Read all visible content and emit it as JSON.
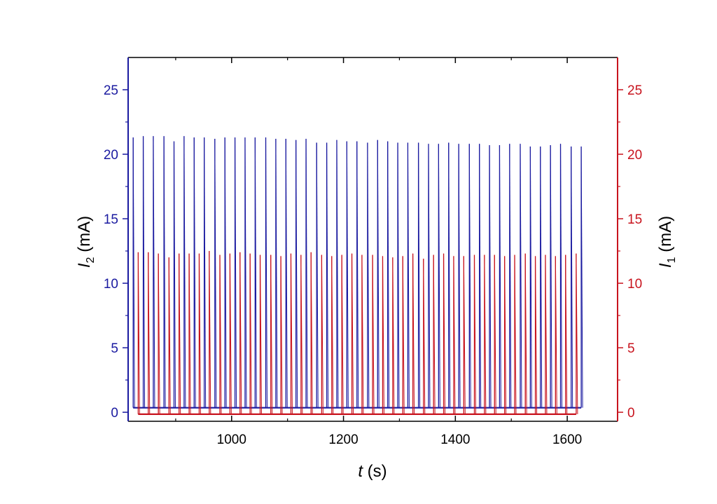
{
  "chart_data": {
    "type": "line",
    "x": {
      "label_var": "t",
      "label_unit": " (s)",
      "range": [
        815,
        1690
      ],
      "ticks": [
        1000,
        1200,
        1400,
        1600
      ],
      "tick_labels": [
        "1000",
        "1200",
        "1400",
        "1600"
      ]
    },
    "y_left": {
      "label_var": "I",
      "label_sub": "2",
      "label_unit": " (mA)",
      "range": [
        -0.7,
        27.5
      ],
      "ticks": [
        0,
        5,
        10,
        15,
        20,
        25
      ],
      "tick_labels": [
        "0",
        "5",
        "10",
        "15",
        "20",
        "25"
      ],
      "color": "#1a1aa0"
    },
    "y_right": {
      "label_var": "I",
      "label_sub": "1",
      "label_unit": " (mA)",
      "range": [
        -0.7,
        27.5
      ],
      "ticks": [
        0,
        5,
        10,
        15,
        20,
        25
      ],
      "tick_labels": [
        "0",
        "5",
        "10",
        "15",
        "20",
        "25"
      ],
      "color": "#c8141e"
    },
    "series": [
      {
        "axis": "left",
        "color": "#1a1aa0",
        "baseline": 0.35,
        "spike_times": [
          824,
          842,
          860,
          879,
          897,
          915,
          933,
          951,
          970,
          988,
          1006,
          1024,
          1042,
          1061,
          1079,
          1097,
          1115,
          1133,
          1152,
          1170,
          1188,
          1206,
          1224,
          1243,
          1261,
          1279,
          1297,
          1315,
          1334,
          1352,
          1370,
          1388,
          1406,
          1425,
          1443,
          1461,
          1479,
          1497,
          1516,
          1534,
          1552,
          1570,
          1588,
          1607,
          1625
        ],
        "spike_peaks": [
          21.3,
          21.4,
          21.4,
          21.4,
          21.0,
          21.4,
          21.3,
          21.3,
          21.2,
          21.3,
          21.3,
          21.3,
          21.3,
          21.3,
          21.2,
          21.2,
          21.1,
          21.2,
          20.9,
          20.9,
          21.1,
          21.0,
          21.0,
          20.9,
          21.1,
          21.0,
          20.9,
          20.9,
          20.9,
          20.8,
          20.8,
          20.9,
          20.8,
          20.8,
          20.8,
          20.7,
          20.7,
          20.8,
          20.8,
          20.6,
          20.6,
          20.7,
          20.8,
          20.6,
          20.6
        ]
      },
      {
        "axis": "right",
        "color": "#c8141e",
        "baseline": -0.15,
        "spike_times": [
          833,
          851,
          869,
          888,
          906,
          924,
          942,
          960,
          979,
          997,
          1015,
          1033,
          1051,
          1070,
          1088,
          1106,
          1124,
          1142,
          1161,
          1179,
          1197,
          1215,
          1233,
          1252,
          1270,
          1288,
          1306,
          1324,
          1343,
          1361,
          1379,
          1397,
          1415,
          1434,
          1452,
          1470,
          1488,
          1506,
          1525,
          1543,
          1561,
          1579,
          1597,
          1616
        ],
        "spike_peaks": [
          12.4,
          12.4,
          12.3,
          12.0,
          12.3,
          12.3,
          12.3,
          12.5,
          12.2,
          12.3,
          12.4,
          12.3,
          12.2,
          12.2,
          12.1,
          12.3,
          12.2,
          12.4,
          12.2,
          12.1,
          12.2,
          12.3,
          12.2,
          12.2,
          12.1,
          12.0,
          12.1,
          12.3,
          11.9,
          12.2,
          12.3,
          12.1,
          12.1,
          12.2,
          12.2,
          12.2,
          12.1,
          12.2,
          12.3,
          12.1,
          12.2,
          12.1,
          12.2,
          12.3
        ]
      }
    ]
  }
}
